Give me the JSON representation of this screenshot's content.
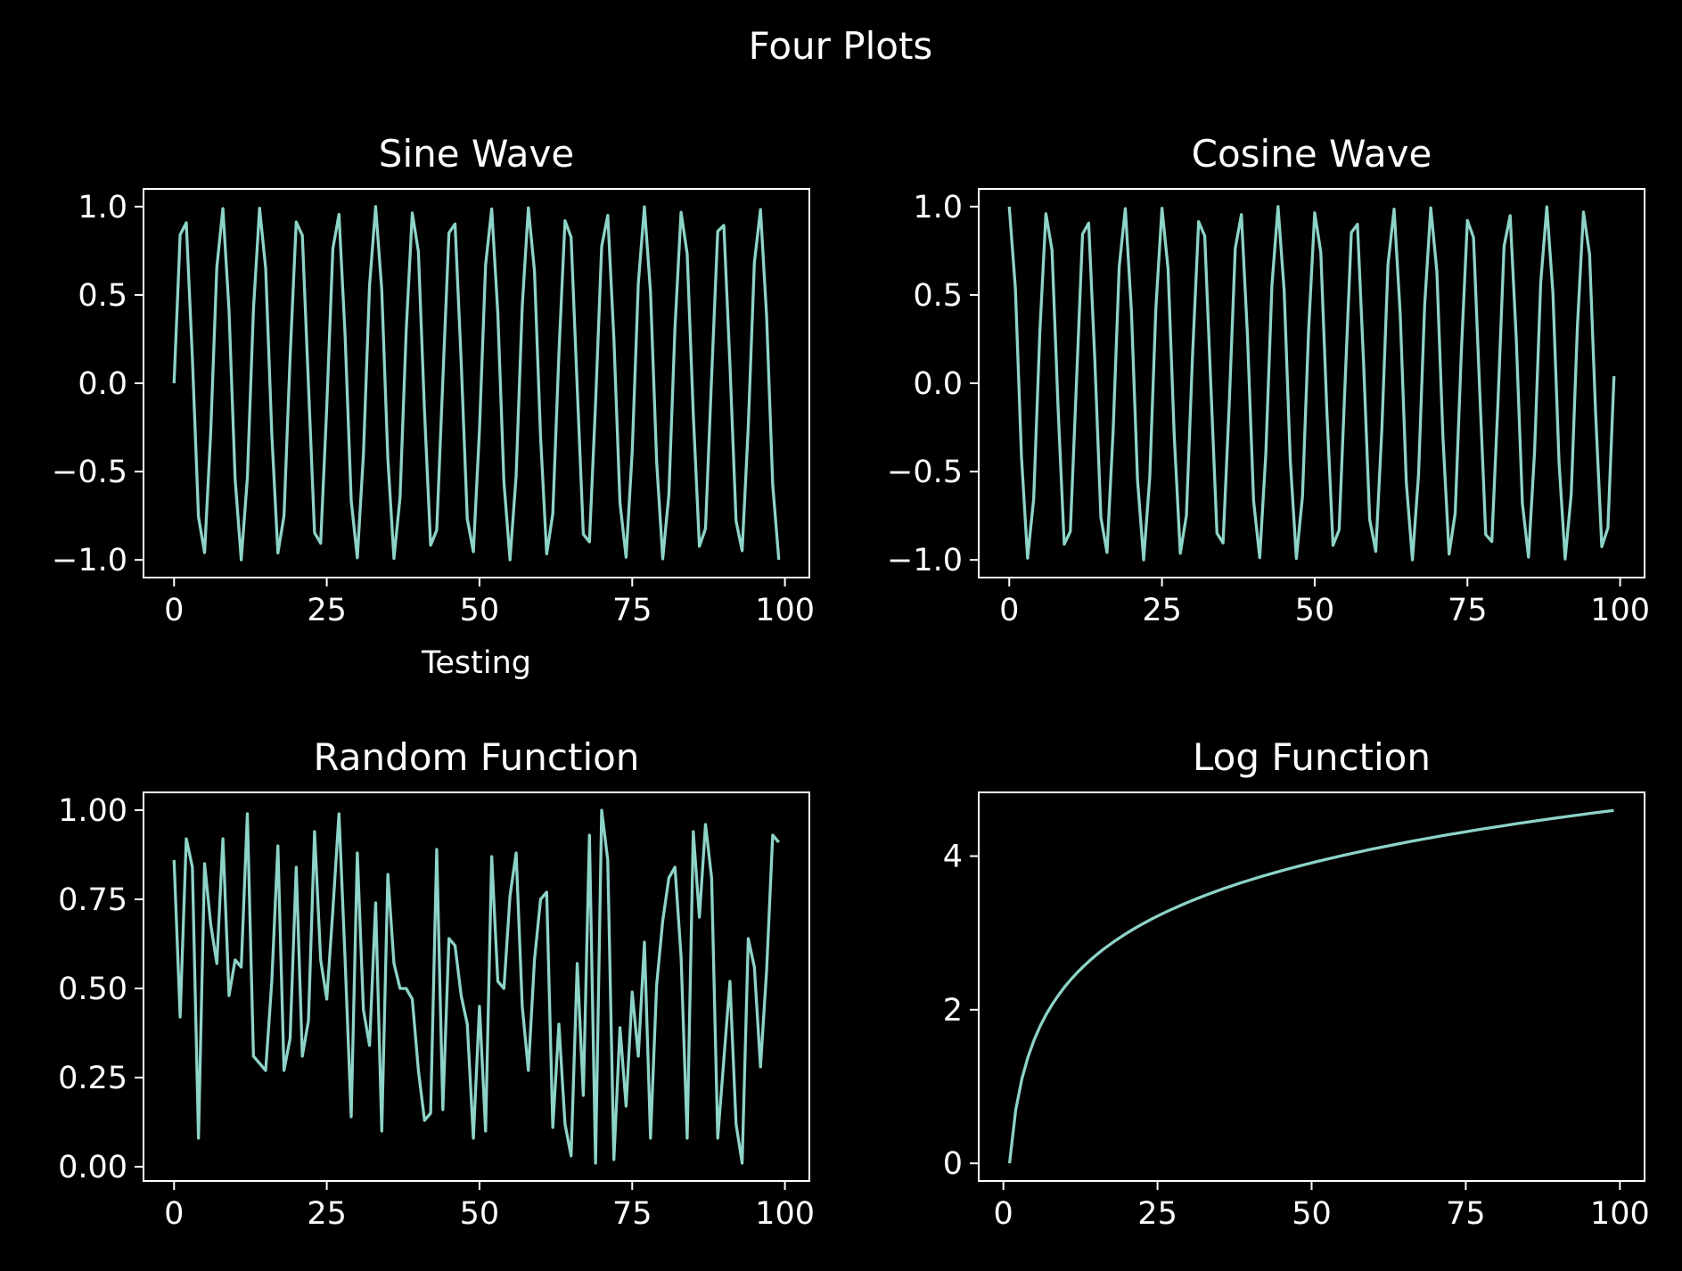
{
  "figure": {
    "title": "Four Plots",
    "background": "#000000",
    "line_color": "#8dd3c7",
    "axis_color": "#ffffff"
  },
  "chart_data": [
    {
      "type": "line",
      "title": "Sine Wave",
      "xlabel": "Testing",
      "ylabel": "",
      "xlim": [
        -5,
        104
      ],
      "ylim": [
        -1.1,
        1.1
      ],
      "xticks": [
        0,
        25,
        50,
        75,
        100
      ],
      "xtick_labels": [
        "0",
        "25",
        "50",
        "75",
        "100"
      ],
      "yticks": [
        -1.0,
        -0.5,
        0.0,
        0.5,
        1.0
      ],
      "ytick_labels": [
        "−1.0",
        "−0.5",
        "0.0",
        "0.5",
        "1.0"
      ],
      "grid": false,
      "x": [
        0,
        1,
        2,
        3,
        4,
        5,
        6,
        7,
        8,
        9,
        10,
        11,
        12,
        13,
        14,
        15,
        16,
        17,
        18,
        19,
        20,
        21,
        22,
        23,
        24,
        25,
        26,
        27,
        28,
        29,
        30,
        31,
        32,
        33,
        34,
        35,
        36,
        37,
        38,
        39,
        40,
        41,
        42,
        43,
        44,
        45,
        46,
        47,
        48,
        49,
        50,
        51,
        52,
        53,
        54,
        55,
        56,
        57,
        58,
        59,
        60,
        61,
        62,
        63,
        64,
        65,
        66,
        67,
        68,
        69,
        70,
        71,
        72,
        73,
        74,
        75,
        76,
        77,
        78,
        79,
        80,
        81,
        82,
        83,
        84,
        85,
        86,
        87,
        88,
        89,
        90,
        91,
        92,
        93,
        94,
        95,
        96,
        97,
        98,
        99
      ],
      "values": [
        0.0,
        0.841,
        0.909,
        0.141,
        -0.757,
        -0.959,
        -0.279,
        0.657,
        0.989,
        0.412,
        -0.544,
        -1.0,
        -0.537,
        0.42,
        0.991,
        0.65,
        -0.288,
        -0.961,
        -0.751,
        0.15,
        0.913,
        0.837,
        -0.009,
        -0.846,
        -0.906,
        -0.132,
        0.763,
        0.956,
        0.271,
        -0.664,
        -0.988,
        -0.404,
        0.551,
        1.0,
        0.529,
        -0.428,
        -0.992,
        -0.644,
        0.296,
        0.964,
        0.745,
        -0.159,
        -0.917,
        -0.832,
        0.018,
        0.851,
        0.902,
        0.124,
        -0.768,
        -0.954,
        -0.262,
        0.67,
        0.987,
        0.396,
        -0.559,
        -1.0,
        -0.522,
        0.436,
        0.993,
        0.637,
        -0.305,
        -0.966,
        -0.739,
        0.167,
        0.92,
        0.827,
        -0.027,
        -0.855,
        -0.898,
        -0.115,
        0.774,
        0.951,
        0.254,
        -0.677,
        -0.985,
        -0.388,
        0.566,
        0.999,
        0.514,
        -0.444,
        -0.994,
        -0.63,
        0.313,
        0.968,
        0.733,
        -0.176,
        -0.923,
        -0.822,
        0.035,
        0.86,
        0.894,
        0.106,
        -0.779,
        -0.948,
        -0.245,
        0.683,
        0.984,
        0.38,
        -0.573,
        -0.999
      ]
    },
    {
      "type": "line",
      "title": "Cosine Wave",
      "xlabel": "",
      "ylabel": "",
      "xlim": [
        -5,
        104
      ],
      "ylim": [
        -1.1,
        1.1
      ],
      "xticks": [
        0,
        25,
        50,
        75,
        100
      ],
      "xtick_labels": [
        "0",
        "25",
        "50",
        "75",
        "100"
      ],
      "yticks": [
        -1.0,
        -0.5,
        0.0,
        0.5,
        1.0
      ],
      "ytick_labels": [
        "−1.0",
        "−0.5",
        "0.0",
        "0.5",
        "1.0"
      ],
      "grid": false,
      "x": [
        0,
        1,
        2,
        3,
        4,
        5,
        6,
        7,
        8,
        9,
        10,
        11,
        12,
        13,
        14,
        15,
        16,
        17,
        18,
        19,
        20,
        21,
        22,
        23,
        24,
        25,
        26,
        27,
        28,
        29,
        30,
        31,
        32,
        33,
        34,
        35,
        36,
        37,
        38,
        39,
        40,
        41,
        42,
        43,
        44,
        45,
        46,
        47,
        48,
        49,
        50,
        51,
        52,
        53,
        54,
        55,
        56,
        57,
        58,
        59,
        60,
        61,
        62,
        63,
        64,
        65,
        66,
        67,
        68,
        69,
        70,
        71,
        72,
        73,
        74,
        75,
        76,
        77,
        78,
        79,
        80,
        81,
        82,
        83,
        84,
        85,
        86,
        87,
        88,
        89,
        90,
        91,
        92,
        93,
        94,
        95,
        96,
        97,
        98,
        99
      ],
      "values": [
        1.0,
        0.54,
        -0.416,
        -0.99,
        -0.654,
        0.284,
        0.96,
        0.754,
        -0.146,
        -0.911,
        -0.839,
        0.004,
        0.844,
        0.907,
        0.137,
        -0.76,
        -0.958,
        -0.275,
        0.66,
        0.989,
        0.408,
        -0.548,
        -1.0,
        -0.533,
        0.424,
        0.991,
        0.647,
        -0.292,
        -0.963,
        -0.748,
        0.154,
        0.915,
        0.834,
        -0.013,
        -0.849,
        -0.904,
        -0.128,
        0.765,
        0.955,
        0.267,
        -0.667,
        -0.987,
        -0.4,
        0.555,
        1.0,
        0.525,
        -0.432,
        -0.992,
        -0.641,
        0.3,
        0.965,
        0.742,
        -0.163,
        -0.918,
        -0.83,
        0.022,
        0.853,
        0.9,
        0.119,
        -0.771,
        -0.952,
        -0.258,
        0.674,
        0.986,
        0.392,
        -0.562,
        -1.0,
        -0.518,
        0.44,
        0.993,
        0.633,
        -0.309,
        -0.967,
        -0.736,
        0.172,
        0.922,
        0.825,
        -0.031,
        -0.857,
        -0.896,
        -0.11,
        0.776,
        0.949,
        0.25,
        -0.68,
        -0.984,
        -0.384,
        0.57,
        0.999,
        0.51,
        -0.448,
        -0.995,
        -0.626,
        0.317,
        0.969,
        0.73,
        -0.18,
        -0.925,
        -0.819,
        0.04
      ]
    },
    {
      "type": "line",
      "title": "Random Function",
      "xlabel": "",
      "ylabel": "",
      "xlim": [
        -5,
        104
      ],
      "ylim": [
        -0.04,
        1.05
      ],
      "xticks": [
        0,
        25,
        50,
        75,
        100
      ],
      "xtick_labels": [
        "0",
        "25",
        "50",
        "75",
        "100"
      ],
      "yticks": [
        0.0,
        0.25,
        0.5,
        0.75,
        1.0
      ],
      "ytick_labels": [
        "0.00",
        "0.25",
        "0.50",
        "0.75",
        "1.00"
      ],
      "grid": false,
      "x": [
        0,
        1,
        2,
        3,
        4,
        5,
        6,
        7,
        8,
        9,
        10,
        11,
        12,
        13,
        14,
        15,
        16,
        17,
        18,
        19,
        20,
        21,
        22,
        23,
        24,
        25,
        26,
        27,
        28,
        29,
        30,
        31,
        32,
        33,
        34,
        35,
        36,
        37,
        38,
        39,
        40,
        41,
        42,
        43,
        44,
        45,
        46,
        47,
        48,
        49,
        50,
        51,
        52,
        53,
        54,
        55,
        56,
        57,
        58,
        59,
        60,
        61,
        62,
        63,
        64,
        65,
        66,
        67,
        68,
        69,
        70,
        71,
        72,
        73,
        74,
        75,
        76,
        77,
        78,
        79,
        80,
        81,
        82,
        83,
        84,
        85,
        86,
        87,
        88,
        89,
        90,
        91,
        92,
        93,
        94,
        95,
        96,
        97,
        98,
        99
      ],
      "values": [
        0.86,
        0.42,
        0.92,
        0.84,
        0.08,
        0.85,
        0.68,
        0.57,
        0.92,
        0.48,
        0.58,
        0.56,
        0.99,
        0.31,
        0.29,
        0.27,
        0.52,
        0.9,
        0.27,
        0.36,
        0.84,
        0.31,
        0.41,
        0.94,
        0.58,
        0.47,
        0.72,
        0.99,
        0.58,
        0.14,
        0.88,
        0.44,
        0.34,
        0.74,
        0.1,
        0.82,
        0.57,
        0.5,
        0.5,
        0.47,
        0.27,
        0.13,
        0.15,
        0.89,
        0.16,
        0.64,
        0.62,
        0.48,
        0.4,
        0.08,
        0.45,
        0.1,
        0.87,
        0.52,
        0.5,
        0.76,
        0.88,
        0.45,
        0.27,
        0.58,
        0.75,
        0.77,
        0.11,
        0.4,
        0.12,
        0.03,
        0.57,
        0.2,
        0.93,
        0.01,
        1.0,
        0.86,
        0.02,
        0.39,
        0.17,
        0.49,
        0.31,
        0.63,
        0.08,
        0.51,
        0.69,
        0.81,
        0.84,
        0.59,
        0.08,
        0.94,
        0.7,
        0.96,
        0.81,
        0.08,
        0.3,
        0.52,
        0.12,
        0.01,
        0.64,
        0.56,
        0.28,
        0.55,
        0.93,
        0.91
      ]
    },
    {
      "type": "line",
      "title": "Log Function",
      "xlabel": "",
      "ylabel": "",
      "xlim": [
        -4,
        104
      ],
      "ylim": [
        -0.23,
        4.83
      ],
      "xticks": [
        0,
        25,
        50,
        75,
        100
      ],
      "xtick_labels": [
        "0",
        "25",
        "50",
        "75",
        "100"
      ],
      "yticks": [
        0,
        2,
        4
      ],
      "ytick_labels": [
        "0",
        "2",
        "4"
      ],
      "grid": false,
      "x": [
        1,
        2,
        3,
        4,
        5,
        6,
        7,
        8,
        9,
        10,
        11,
        12,
        13,
        14,
        15,
        16,
        17,
        18,
        19,
        20,
        21,
        22,
        23,
        24,
        25,
        26,
        27,
        28,
        29,
        30,
        31,
        32,
        33,
        34,
        35,
        36,
        37,
        38,
        39,
        40,
        41,
        42,
        43,
        44,
        45,
        46,
        47,
        48,
        49,
        50,
        51,
        52,
        53,
        54,
        55,
        56,
        57,
        58,
        59,
        60,
        61,
        62,
        63,
        64,
        65,
        66,
        67,
        68,
        69,
        70,
        71,
        72,
        73,
        74,
        75,
        76,
        77,
        78,
        79,
        80,
        81,
        82,
        83,
        84,
        85,
        86,
        87,
        88,
        89,
        90,
        91,
        92,
        93,
        94,
        95,
        96,
        97,
        98,
        99
      ],
      "values": [
        0.0,
        0.693,
        1.099,
        1.386,
        1.609,
        1.792,
        1.946,
        2.079,
        2.197,
        2.303,
        2.398,
        2.485,
        2.565,
        2.639,
        2.708,
        2.773,
        2.833,
        2.89,
        2.944,
        2.996,
        3.045,
        3.091,
        3.135,
        3.178,
        3.219,
        3.258,
        3.296,
        3.332,
        3.367,
        3.401,
        3.434,
        3.466,
        3.497,
        3.526,
        3.555,
        3.584,
        3.611,
        3.638,
        3.664,
        3.689,
        3.714,
        3.738,
        3.761,
        3.784,
        3.807,
        3.829,
        3.85,
        3.871,
        3.892,
        3.912,
        3.932,
        3.951,
        3.97,
        3.989,
        4.007,
        4.025,
        4.043,
        4.06,
        4.078,
        4.094,
        4.111,
        4.127,
        4.143,
        4.159,
        4.174,
        4.19,
        4.205,
        4.22,
        4.234,
        4.248,
        4.263,
        4.277,
        4.29,
        4.304,
        4.317,
        4.331,
        4.344,
        4.357,
        4.369,
        4.382,
        4.394,
        4.407,
        4.419,
        4.431,
        4.443,
        4.454,
        4.466,
        4.477,
        4.489,
        4.5,
        4.511,
        4.522,
        4.533,
        4.543,
        4.554,
        4.564,
        4.575,
        4.585,
        4.595
      ]
    }
  ]
}
